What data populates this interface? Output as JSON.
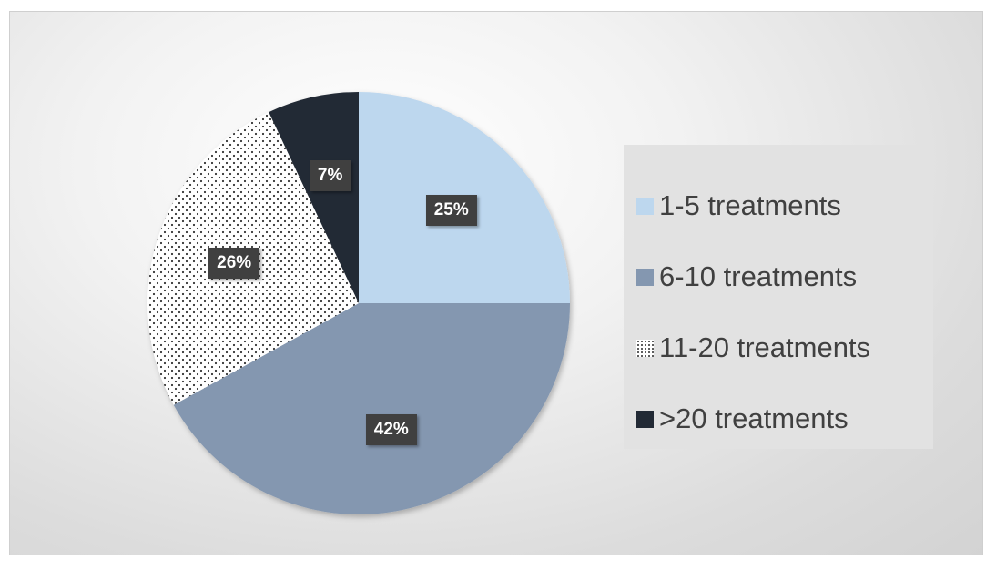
{
  "chart_data": {
    "type": "pie",
    "title": "",
    "slices": [
      {
        "label": "1-5 treatments",
        "value": 25,
        "display": "25%",
        "color": "#bdd7ee",
        "pattern": "solid"
      },
      {
        "label": "6-10 treatments",
        "value": 42,
        "display": "42%",
        "color": "#8497b0",
        "pattern": "solid"
      },
      {
        "label": "11-20 treatments",
        "value": 26,
        "display": "26%",
        "color": "#ffffff",
        "pattern": "dots"
      },
      {
        "label": ">20 treatments",
        "value": 7,
        "display": "7%",
        "color": "#222a35",
        "pattern": "solid"
      }
    ],
    "start_angle": "12 o'clock, clockwise",
    "legend_position": "right"
  }
}
